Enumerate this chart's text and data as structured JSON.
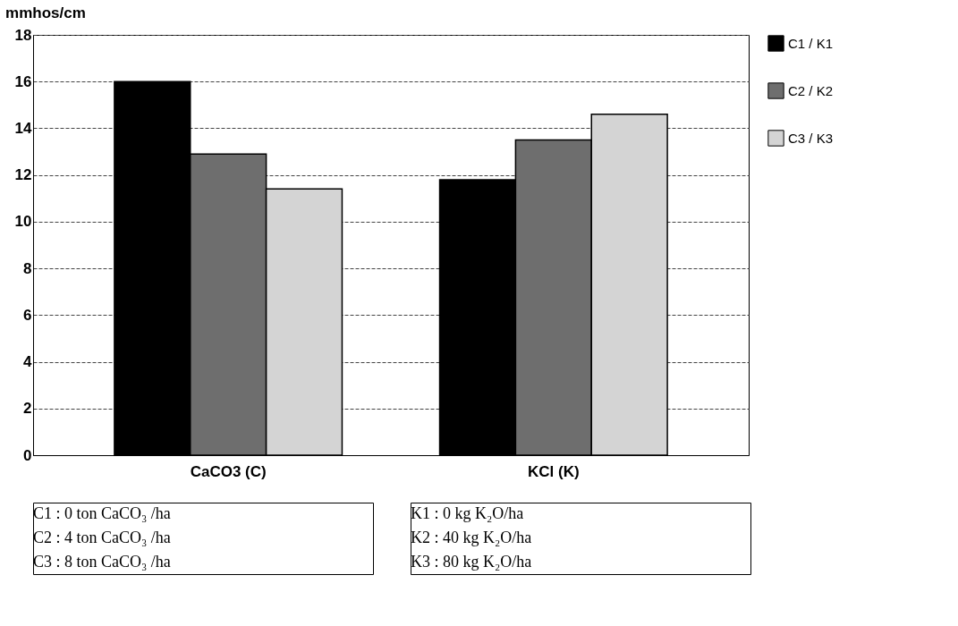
{
  "chart_data": {
    "type": "bar",
    "ylabel": "mmhos/cm",
    "categories": [
      "CaCO3 (C)",
      "KCl (K)"
    ],
    "series": [
      {
        "name": "C1 / K1",
        "color": "#000000",
        "values": [
          16.0,
          11.8
        ]
      },
      {
        "name": "C2 / K2",
        "color": "#6e6e6e",
        "values": [
          12.9,
          13.5
        ]
      },
      {
        "name": "C3 / K3",
        "color": "#d4d4d4",
        "values": [
          11.4,
          14.6
        ]
      }
    ],
    "ylim": [
      0,
      18
    ],
    "yticks": [
      0,
      2,
      4,
      6,
      8,
      10,
      12,
      14,
      16,
      18
    ],
    "grid": "y",
    "legend": "right",
    "annotations": [
      "C1 :  0 ton CaCO₃ /ha",
      "C2 :  4 ton CaCO₃ /ha",
      "C3 :  8 ton CaCO₃ /ha",
      "K1 :  0 kg K₂O/ha",
      "K2 : 40 kg K₂O/ha",
      "K3 : 80 kg K₂O/ha"
    ]
  }
}
